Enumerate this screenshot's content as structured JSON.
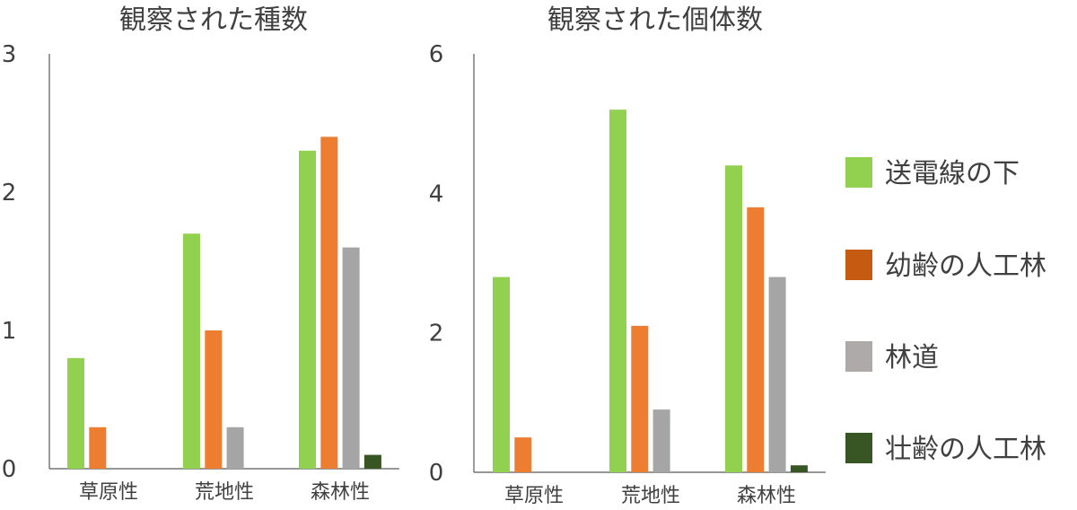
{
  "chart_data": [
    {
      "type": "bar",
      "title": "観察された種数",
      "categories": [
        "草原性",
        "荒地性",
        "森林性"
      ],
      "ylim": [
        0,
        3
      ],
      "yticks": [
        "0",
        "1",
        "2",
        "3"
      ],
      "series": [
        {
          "name": "送電線の下",
          "color": "#92d050",
          "values": [
            0.8,
            1.7,
            2.3
          ]
        },
        {
          "name": "幼齢の人工林",
          "color": "#ed7d31",
          "values": [
            0.3,
            1.0,
            2.4
          ]
        },
        {
          "name": "林道",
          "color": "#a5a5a5",
          "values": [
            0,
            0.3,
            1.6
          ]
        },
        {
          "name": "壮齢の人工林",
          "color": "#375623",
          "values": [
            0,
            0,
            0.1
          ]
        }
      ]
    },
    {
      "type": "bar",
      "title": "観察された個体数",
      "categories": [
        "草原性",
        "荒地性",
        "森林性"
      ],
      "ylim": [
        0,
        6
      ],
      "yticks": [
        "0",
        "2",
        "4",
        "6"
      ],
      "series": [
        {
          "name": "送電線の下",
          "color": "#92d050",
          "values": [
            2.8,
            5.2,
            4.4
          ]
        },
        {
          "name": "幼齢の人工林",
          "color": "#ed7d31",
          "values": [
            0.5,
            2.1,
            3.8
          ]
        },
        {
          "name": "林道",
          "color": "#a5a5a5",
          "values": [
            0,
            0.9,
            2.8
          ]
        },
        {
          "name": "壮齢の人工林",
          "color": "#375623",
          "values": [
            0,
            0,
            0.1
          ]
        }
      ]
    }
  ],
  "legend": [
    {
      "label": "送電線の下",
      "color": "#92d050"
    },
    {
      "label": "幼齢の人工林",
      "color": "#c55a11"
    },
    {
      "label": "林道",
      "color": "#aeaaaa"
    },
    {
      "label": "壮齢の人工林",
      "color": "#375623"
    }
  ]
}
